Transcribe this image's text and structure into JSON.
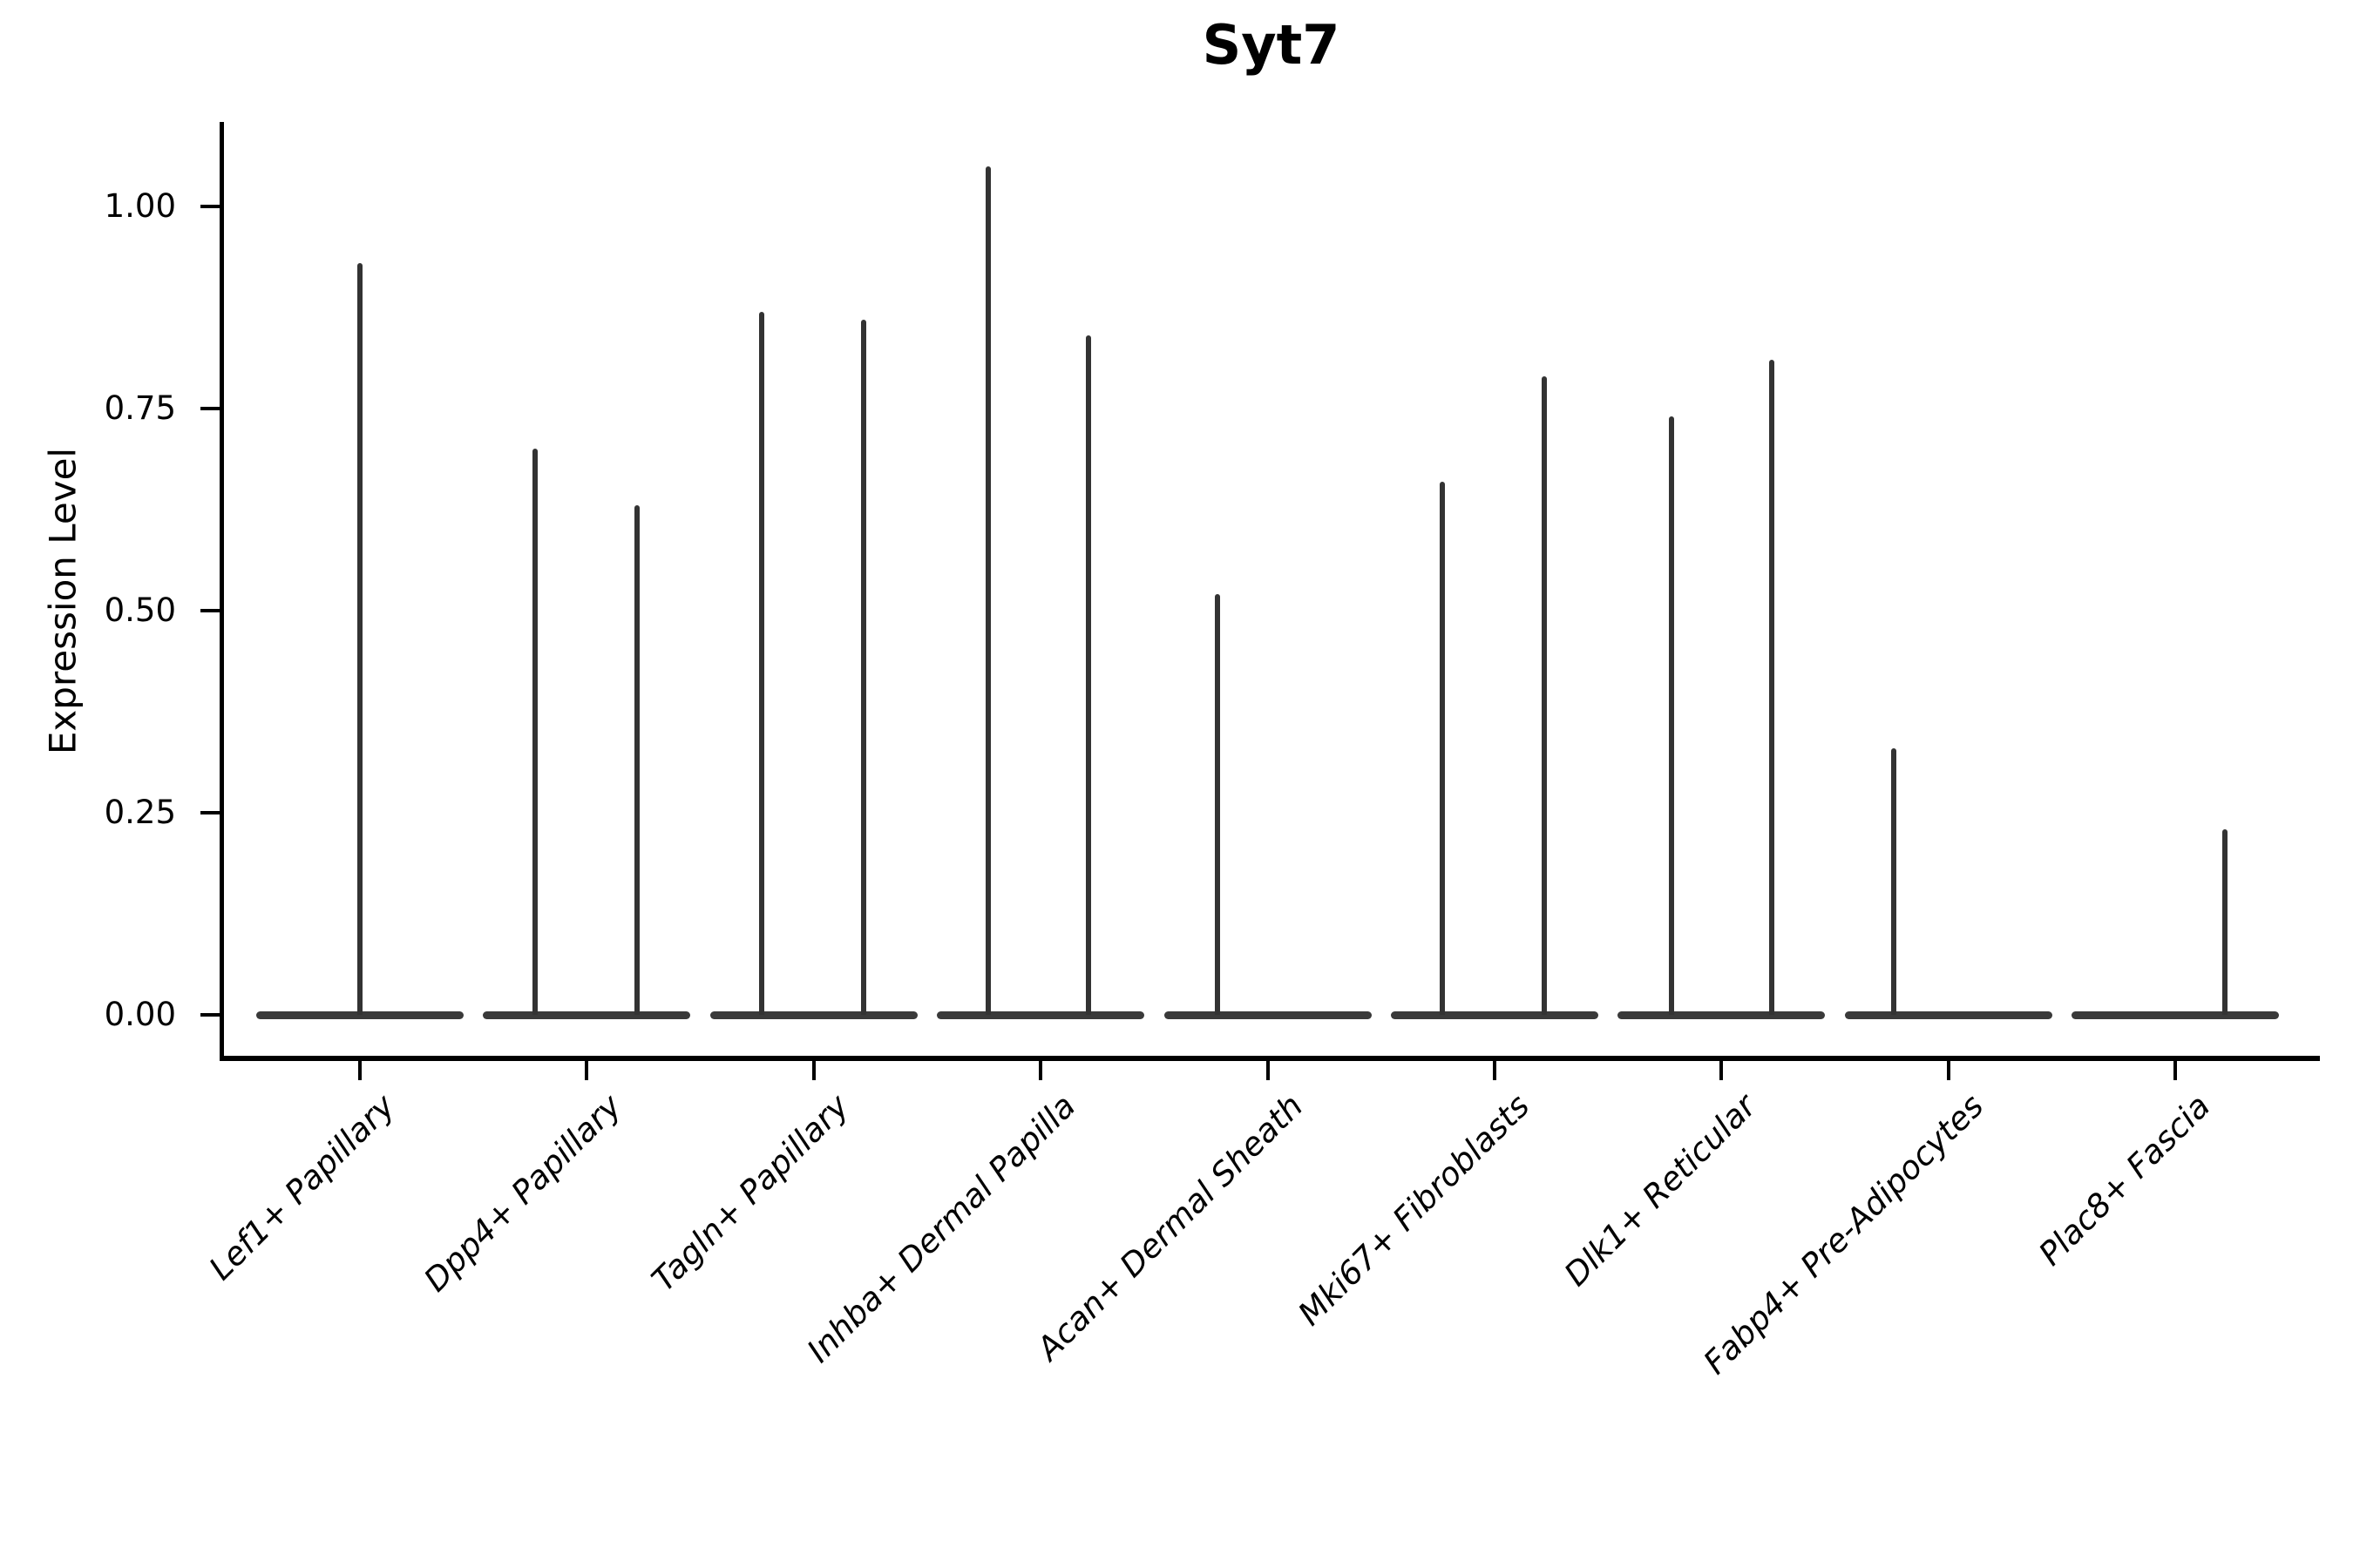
{
  "figure": {
    "title": "Syt7"
  },
  "chart_data": {
    "type": "violin",
    "title": "Syt7",
    "xlabel": "",
    "ylabel": "Expression Level",
    "ylim": [
      -0.054,
      1.104
    ],
    "grid": false,
    "legend": false,
    "ytick_values": [
      0,
      0.25,
      0.5,
      0.75,
      1.0
    ],
    "ytick_labels": [
      "0.00",
      "0.25",
      "0.50",
      "0.75",
      "1.00"
    ],
    "categories": [
      "Lef1+ Papillary",
      "Dpp4+ Papillary",
      "Tagln+ Papillary",
      "Inhba+ Dermal Papilla",
      "Acan+ Dermal Sheath",
      "Mki67+ Fibroblasts",
      "Dlk1+ Reticular",
      "Fabp4+ Pre-Adipocytes",
      "Plac8+ Fascia"
    ],
    "base_value": 0.0,
    "base_half_width": 0.455,
    "violins": [
      {
        "category": "Lef1+ Papillary",
        "spikes": [
          {
            "pos": 0.0,
            "max": 0.93
          }
        ]
      },
      {
        "category": "Dpp4+ Papillary",
        "spikes": [
          {
            "pos": -0.23,
            "max": 0.7
          },
          {
            "pos": 0.22,
            "max": 0.63
          }
        ]
      },
      {
        "category": "Tagln+ Papillary",
        "spikes": [
          {
            "pos": -0.23,
            "max": 0.87
          },
          {
            "pos": 0.22,
            "max": 0.86
          }
        ]
      },
      {
        "category": "Inhba+ Dermal Papilla",
        "spikes": [
          {
            "pos": -0.23,
            "max": 1.05
          },
          {
            "pos": 0.21,
            "max": 0.84
          }
        ]
      },
      {
        "category": "Acan+ Dermal Sheath",
        "spikes": [
          {
            "pos": -0.22,
            "max": 0.52
          }
        ]
      },
      {
        "category": "Mki67+ Fibroblasts",
        "spikes": [
          {
            "pos": -0.23,
            "max": 0.66
          },
          {
            "pos": 0.22,
            "max": 0.79
          }
        ]
      },
      {
        "category": "Dlk1+ Reticular",
        "spikes": [
          {
            "pos": -0.22,
            "max": 0.74
          },
          {
            "pos": 0.22,
            "max": 0.81
          }
        ]
      },
      {
        "category": "Fabp4+ Pre-Adipocytes",
        "spikes": [
          {
            "pos": -0.24,
            "max": 0.33
          }
        ]
      },
      {
        "category": "Plac8+ Fascia",
        "spikes": [
          {
            "pos": 0.22,
            "max": 0.23
          }
        ]
      }
    ],
    "colors": {
      "spike": "#333333",
      "violin_base": "#3a3a3a",
      "axis": "#000000",
      "text": "#000000",
      "background": "#ffffff"
    }
  }
}
